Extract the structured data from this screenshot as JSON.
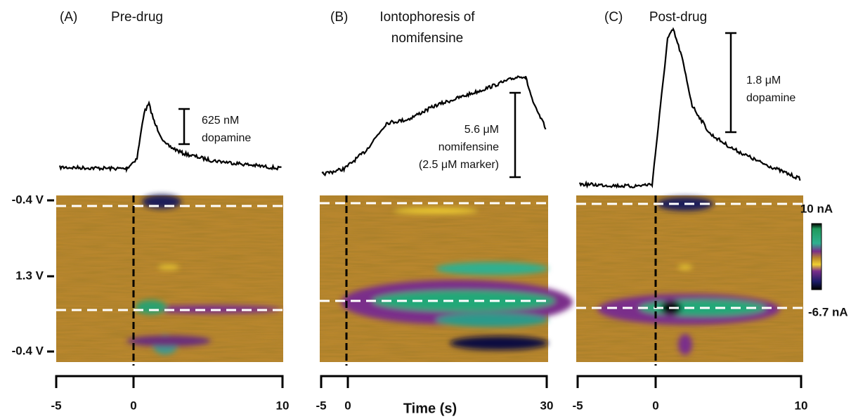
{
  "panels": [
    {
      "label": "(A)",
      "title": [
        "Pre-drug"
      ],
      "scale_bar": [
        "625 nM",
        "dopamine"
      ],
      "x_ticks": [
        "-5",
        "0",
        "10"
      ]
    },
    {
      "label": "(B)",
      "title": [
        "Iontophoresis of",
        "nomifensine"
      ],
      "scale_bar": [
        "5.6 μM",
        "nomifensine",
        "(2.5 μM marker)"
      ],
      "x_ticks": [
        "-5",
        "0",
        "30"
      ]
    },
    {
      "label": "(C)",
      "title": [
        "Post-drug"
      ],
      "scale_bar": [
        "1.8 μM",
        "dopamine"
      ],
      "x_ticks": [
        "-5",
        "0",
        "10"
      ]
    }
  ],
  "y_labels": [
    "-0.4 V",
    "1.3 V",
    "-0.4 V"
  ],
  "x_axis_title": "Time (s)",
  "colorbar": {
    "max": "10 nA",
    "min": "-6.7 nA"
  }
}
